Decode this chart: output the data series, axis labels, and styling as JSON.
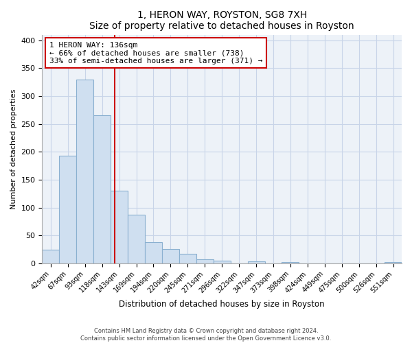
{
  "title": "1, HERON WAY, ROYSTON, SG8 7XH",
  "subtitle": "Size of property relative to detached houses in Royston",
  "xlabel": "Distribution of detached houses by size in Royston",
  "ylabel": "Number of detached properties",
  "bar_labels": [
    "42sqm",
    "67sqm",
    "93sqm",
    "118sqm",
    "143sqm",
    "169sqm",
    "194sqm",
    "220sqm",
    "245sqm",
    "271sqm",
    "296sqm",
    "322sqm",
    "347sqm",
    "373sqm",
    "398sqm",
    "424sqm",
    "449sqm",
    "475sqm",
    "500sqm",
    "526sqm",
    "551sqm"
  ],
  "bar_values": [
    25,
    193,
    330,
    265,
    130,
    87,
    38,
    26,
    17,
    7,
    5,
    0,
    4,
    0,
    3,
    0,
    0,
    0,
    0,
    0,
    3
  ],
  "bar_color": "#cfdff0",
  "bar_edge_color": "#8ab0d0",
  "vline_color": "#cc0000",
  "vline_x_idx": 3.72,
  "annotation_title": "1 HERON WAY: 136sqm",
  "annotation_line1": "← 66% of detached houses are smaller (738)",
  "annotation_line2": "33% of semi-detached houses are larger (371) →",
  "annotation_box_color": "#cc0000",
  "ylim": [
    0,
    410
  ],
  "yticks": [
    0,
    50,
    100,
    150,
    200,
    250,
    300,
    350,
    400
  ],
  "grid_color": "#c8d4e8",
  "bg_color": "#edf2f8",
  "footer1": "Contains HM Land Registry data © Crown copyright and database right 2024.",
  "footer2": "Contains public sector information licensed under the Open Government Licence v3.0."
}
